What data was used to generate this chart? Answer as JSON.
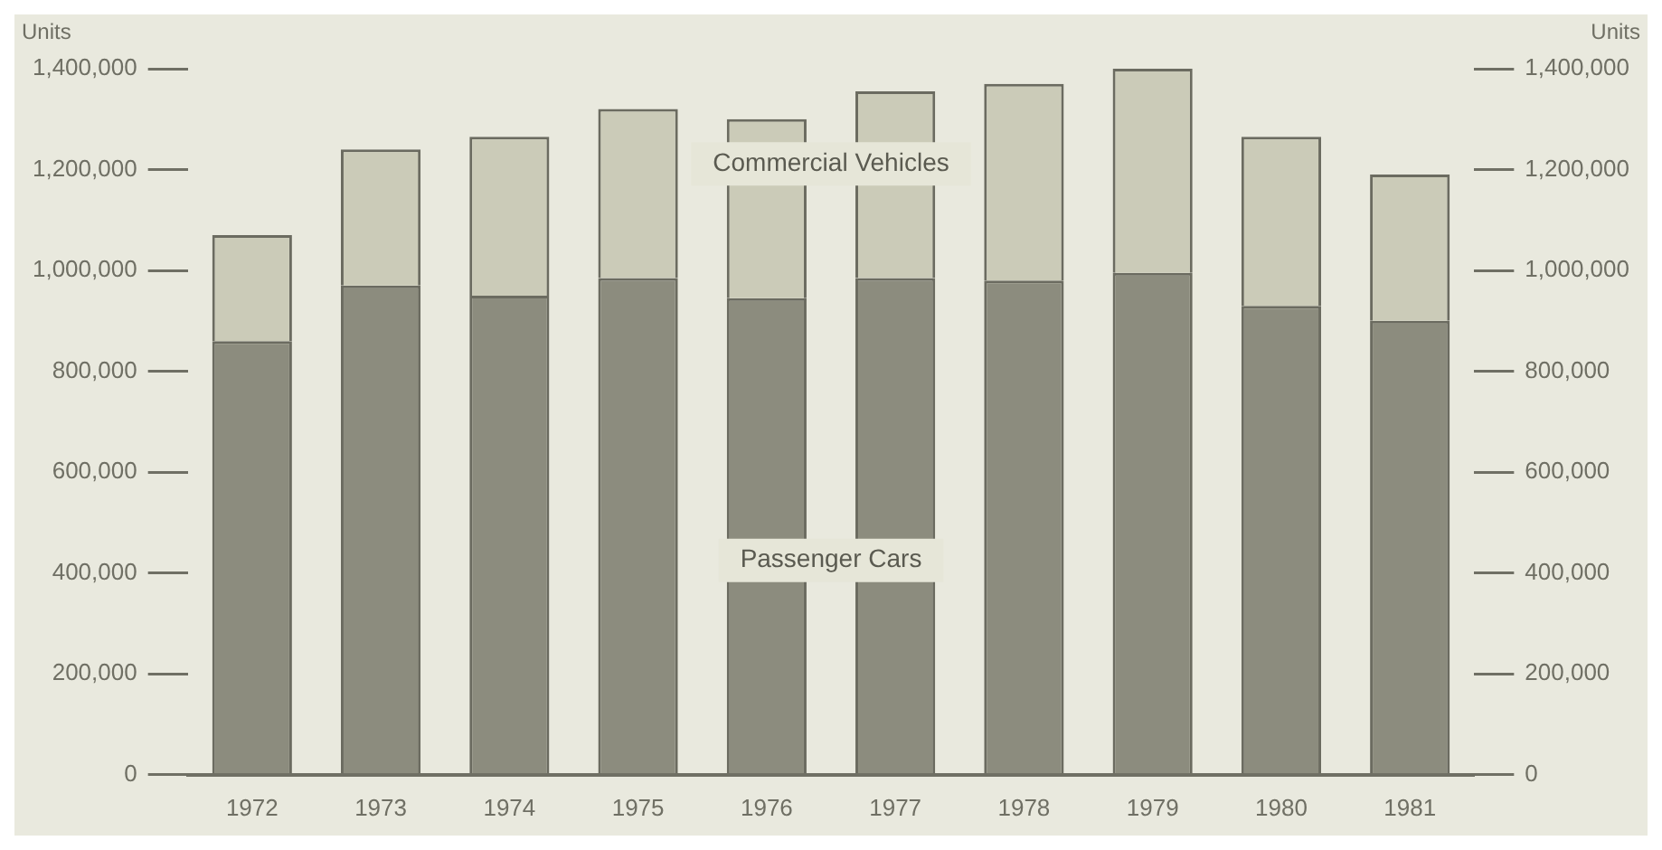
{
  "chart_data": {
    "type": "bar",
    "stacked": true,
    "ylabel": "Units",
    "y2label": "Units",
    "categories": [
      "1972",
      "1973",
      "1974",
      "1975",
      "1976",
      "1977",
      "1978",
      "1979",
      "1980",
      "1981"
    ],
    "series": [
      {
        "name": "Passenger Cars",
        "color": "#8c8c7e",
        "values": [
          860000,
          970000,
          950000,
          985000,
          945000,
          985000,
          980000,
          995000,
          930000,
          900000
        ]
      },
      {
        "name": "Commercial Vehicles",
        "color": "#cbcbb8",
        "values": [
          210000,
          270000,
          315000,
          335000,
          355000,
          370000,
          390000,
          405000,
          335000,
          290000
        ]
      }
    ],
    "ylim": [
      0,
      1400000
    ],
    "yticks": [
      0,
      {
        "value": 200000,
        "label": "200,000"
      },
      {
        "value": 400000,
        "label": "400,000"
      },
      {
        "value": 600000,
        "label": "600,000"
      },
      {
        "value": 800000,
        "label": "800,000"
      },
      {
        "value": 1000000,
        "label": "1,000,000"
      },
      {
        "value": 1200000,
        "label": "1,200,000"
      },
      {
        "value": 1400000,
        "label": "1,400,000"
      }
    ],
    "y2lim": [
      0,
      1400000
    ],
    "y2ticks": [
      0,
      {
        "value": 200000,
        "label": "200,000"
      },
      {
        "value": 400000,
        "label": "400,000"
      },
      {
        "value": 600000,
        "label": "600,000"
      },
      {
        "value": 800000,
        "label": "800,000"
      },
      {
        "value": 1000000,
        "label": "1,000,000"
      },
      {
        "value": 1200000,
        "label": "1,200,000"
      },
      {
        "value": 1400000,
        "label": "1,400,000"
      }
    ],
    "grid": false,
    "legend": false
  }
}
